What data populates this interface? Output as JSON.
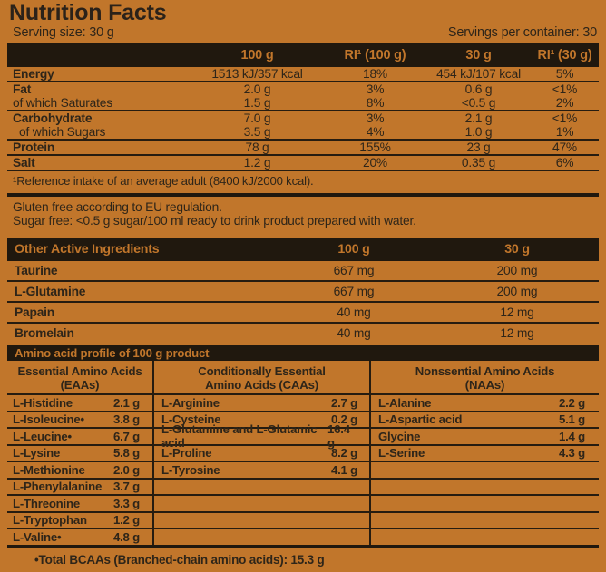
{
  "title": "Nutrition Facts",
  "serving_size": "Serving size: 30 g",
  "servings_per_container": "Servings per container: 30",
  "colors": {
    "background": "#C1762B",
    "bar": "#20180E",
    "bar_text": "#C1762B",
    "ink": "#2E2519"
  },
  "main_table": {
    "columns": [
      "100 g",
      "RI¹ (100 g)",
      "30 g",
      "RI¹ (30 g)"
    ],
    "rows": [
      {
        "label": "Energy",
        "values": [
          "1513 kJ/357 kcal",
          "18%",
          "454 kJ/107 kcal",
          "5%"
        ]
      },
      {
        "label": "Fat",
        "values": [
          "2.0 g",
          "3%",
          "0.6 g",
          "<1%"
        ]
      },
      {
        "label": "of which Saturates",
        "values": [
          "1.5 g",
          "8%",
          "<0.5 g",
          "2%"
        ]
      },
      {
        "label": "Carbohydrate",
        "values": [
          "7.0 g",
          "3%",
          "2.1 g",
          "<1%"
        ]
      },
      {
        "label": "of which Sugars",
        "values": [
          "3.5 g",
          "4%",
          "1.0 g",
          "1%"
        ]
      },
      {
        "label": "Protein",
        "values": [
          "78 g",
          "155%",
          "23 g",
          "47%"
        ]
      },
      {
        "label": "Salt",
        "values": [
          "1.2 g",
          "20%",
          "0.35 g",
          "6%"
        ]
      }
    ]
  },
  "footnote": "¹Reference intake of an average adult (8400 kJ/2000 kcal).",
  "notes": [
    "Gluten free according to EU regulation.",
    "Sugar free: <0.5 g sugar/100 ml ready to drink product prepared with water."
  ],
  "other_active": {
    "title": "Other Active Ingredients",
    "columns": [
      "100 g",
      "30 g"
    ],
    "rows": [
      [
        "Taurine",
        "667 mg",
        "200 mg"
      ],
      [
        "L-Glutamine",
        "667 mg",
        "200 mg"
      ],
      [
        "Papain",
        "40 mg",
        "12 mg"
      ],
      [
        "Bromelain",
        "40 mg",
        "12 mg"
      ]
    ]
  },
  "amino": {
    "title": "Amino acid profile of 100 g product",
    "columns": [
      {
        "header": [
          "Essential Amino Acids",
          "(EAAs)"
        ],
        "rows": [
          [
            "L-Histidine",
            "2.1 g"
          ],
          [
            "L-Isoleucine•",
            "3.8 g"
          ],
          [
            "L-Leucine•",
            "6.7 g"
          ],
          [
            "L-Lysine",
            "5.8 g"
          ],
          [
            "L-Methionine",
            "2.0 g"
          ],
          [
            "L-Phenylalanine",
            "3.7 g"
          ],
          [
            "L-Threonine",
            "3.3 g"
          ],
          [
            "L-Tryptophan",
            "1.2 g"
          ],
          [
            "L-Valine•",
            "4.8 g"
          ]
        ]
      },
      {
        "header": [
          "Conditionally Essential",
          "Amino Acids (CAAs)"
        ],
        "rows": [
          [
            "L-Arginine",
            "2.7 g"
          ],
          [
            "L-Cysteine",
            "0.2 g"
          ],
          [
            "L-Glutamine and L-Glutamic acid",
            "16.4 g"
          ],
          [
            "L-Proline",
            "8.2 g"
          ],
          [
            "L-Tyrosine",
            "4.1 g"
          ],
          [
            "",
            ""
          ],
          [
            "",
            ""
          ],
          [
            "",
            ""
          ],
          [
            "",
            ""
          ]
        ]
      },
      {
        "header": [
          "Nonssential Amino Acids",
          "(NAAs)"
        ],
        "rows": [
          [
            "L-Alanine",
            "2.2 g"
          ],
          [
            "L-Aspartic acid",
            "5.1 g"
          ],
          [
            "Glycine",
            "1.4 g"
          ],
          [
            "L-Serine",
            "4.3 g"
          ],
          [
            "",
            ""
          ],
          [
            "",
            ""
          ],
          [
            "",
            ""
          ],
          [
            "",
            ""
          ],
          [
            "",
            ""
          ]
        ]
      }
    ],
    "footnote": "•Total BCAAs (Branched-chain amino acids): 15.3 g"
  }
}
